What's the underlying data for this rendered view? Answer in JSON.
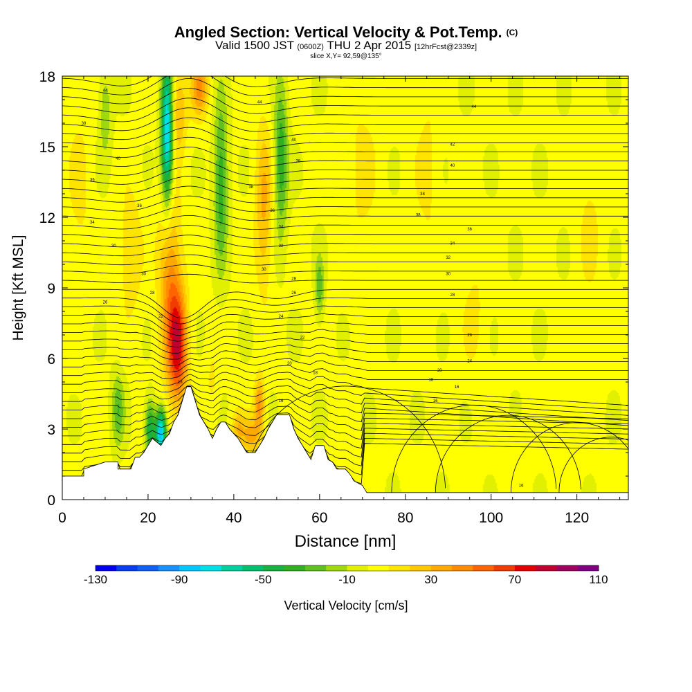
{
  "header": {
    "title": "Angled Section: Vertical Velocity & Pot.Temp.",
    "title_tag": "(C)",
    "valid_prefix": "Valid 1500 JST",
    "valid_utc": "(0600Z)",
    "valid_date": "THU 2 Apr 2015",
    "forecast": "[12hrFcst@2339z]",
    "slice": "slice X,Y= 92,59@135°"
  },
  "chart_data": {
    "type": "heatmap",
    "xlabel": "Distance [nm]",
    "ylabel": "Height [Kft MSL]",
    "xlim": [
      0,
      132
    ],
    "ylim": [
      0,
      18
    ],
    "xticks": [
      0,
      20,
      40,
      60,
      80,
      100,
      120
    ],
    "yticks": [
      0,
      3,
      6,
      9,
      12,
      15,
      18
    ],
    "fill_variable": "Vertical Velocity [cm/s]",
    "contour_variable": "Potential Temperature",
    "colorbar": {
      "label": "Vertical Velocity [cm/s]",
      "min": -130,
      "max": 110,
      "step": 10,
      "tick_labels": [
        "-130",
        "-90",
        "-50",
        "-10",
        "30",
        "70",
        "110"
      ],
      "colors": [
        "#0000ee",
        "#0a3cf0",
        "#1060f5",
        "#1890ff",
        "#00c8ff",
        "#00e0e8",
        "#00d0a0",
        "#00c070",
        "#18b040",
        "#30b020",
        "#60c020",
        "#a0d810",
        "#e0f000",
        "#ffff00",
        "#ffe400",
        "#ffc800",
        "#ffa800",
        "#ff8c00",
        "#ff6400",
        "#f03c00",
        "#e00000",
        "#c00030",
        "#a00060",
        "#800080"
      ]
    },
    "terrain_profile": [
      [
        0,
        1.0
      ],
      [
        5,
        1.0
      ],
      [
        5,
        1.3
      ],
      [
        10,
        1.6
      ],
      [
        13,
        1.6
      ],
      [
        13,
        1.3
      ],
      [
        16,
        1.3
      ],
      [
        17,
        1.8
      ],
      [
        18,
        1.8
      ],
      [
        19,
        2.0
      ],
      [
        20,
        2.3
      ],
      [
        21,
        2.6
      ],
      [
        23,
        2.3
      ],
      [
        24,
        2.6
      ],
      [
        25,
        2.8
      ],
      [
        26,
        3.3
      ],
      [
        27,
        3.6
      ],
      [
        28,
        4.2
      ],
      [
        29,
        4.8
      ],
      [
        30,
        4.8
      ],
      [
        31,
        4.2
      ],
      [
        32,
        3.6
      ],
      [
        33,
        3.3
      ],
      [
        34,
        3.0
      ],
      [
        35,
        2.6
      ],
      [
        36,
        3.0
      ],
      [
        37,
        3.3
      ],
      [
        38,
        3.3
      ],
      [
        39,
        3.0
      ],
      [
        40,
        2.8
      ],
      [
        41,
        2.6
      ],
      [
        42,
        2.3
      ],
      [
        43,
        2.0
      ],
      [
        45,
        2.0
      ],
      [
        46,
        2.3
      ],
      [
        47,
        2.6
      ],
      [
        48,
        3.0
      ],
      [
        49,
        3.3
      ],
      [
        50,
        3.6
      ],
      [
        53,
        3.6
      ],
      [
        54,
        3.0
      ],
      [
        55,
        2.6
      ],
      [
        56,
        2.3
      ],
      [
        57,
        2.0
      ],
      [
        58,
        1.7
      ],
      [
        59,
        2.3
      ],
      [
        61,
        2.3
      ],
      [
        62,
        1.7
      ],
      [
        63,
        1.6
      ],
      [
        64,
        1.3
      ],
      [
        66,
        1.3
      ],
      [
        67,
        1.1
      ],
      [
        68,
        0.8
      ],
      [
        70,
        0.6
      ],
      [
        71,
        0.3
      ],
      [
        132,
        0.3
      ]
    ],
    "vertical_velocity_features": [
      {
        "x": 27,
        "y": 6.5,
        "value": 70,
        "sx": 2.2,
        "sy": 2.4
      },
      {
        "x": 25,
        "y": 9.5,
        "value": 40,
        "sx": 2.5,
        "sy": 4.0
      },
      {
        "x": 27,
        "y": 16.5,
        "value": 30,
        "sx": 2.0,
        "sy": 1.8
      },
      {
        "x": 32,
        "y": 17.5,
        "value": 40,
        "sx": 2.0,
        "sy": 1.2
      },
      {
        "x": 24.5,
        "y": 15.5,
        "value": -90,
        "sx": 1.4,
        "sy": 3.2
      },
      {
        "x": 23,
        "y": 2.8,
        "value": -90,
        "sx": 1.2,
        "sy": 1.0
      },
      {
        "x": 20.5,
        "y": 3.0,
        "value": -50,
        "sx": 1.2,
        "sy": 1.2
      },
      {
        "x": 37,
        "y": 13.5,
        "value": -40,
        "sx": 1.6,
        "sy": 3.5
      },
      {
        "x": 51,
        "y": 14.5,
        "value": -40,
        "sx": 1.6,
        "sy": 3.2
      },
      {
        "x": 47,
        "y": 12.5,
        "value": 30,
        "sx": 2.0,
        "sy": 3.5
      },
      {
        "x": 46,
        "y": 4.0,
        "value": 40,
        "sx": 1.2,
        "sy": 1.2
      },
      {
        "x": 44,
        "y": 2.7,
        "value": 30,
        "sx": 2.0,
        "sy": 0.8
      },
      {
        "x": 41,
        "y": 3.0,
        "value": 25,
        "sx": 1.5,
        "sy": 0.8
      },
      {
        "x": 13,
        "y": 3.8,
        "value": -30,
        "sx": 1.5,
        "sy": 1.5
      },
      {
        "x": 10,
        "y": 16.5,
        "value": -20,
        "sx": 1.5,
        "sy": 2.0
      },
      {
        "x": 16,
        "y": 10.5,
        "value": 20,
        "sx": 2.5,
        "sy": 2.5
      },
      {
        "x": 60,
        "y": 9.0,
        "value": -30,
        "sx": 1.0,
        "sy": 1.3
      },
      {
        "x": 70,
        "y": 14.0,
        "value": 10,
        "sx": 4.0,
        "sy": 5.0
      },
      {
        "x": 85,
        "y": 14.0,
        "value": 10,
        "sx": 3.0,
        "sy": 5.0
      },
      {
        "x": 4,
        "y": 13.0,
        "value": 10,
        "sx": 3.0,
        "sy": 5.0
      },
      {
        "x": 105,
        "y": 2.0,
        "value": 8,
        "sx": 3.0,
        "sy": 1.2
      },
      {
        "x": 118,
        "y": 4.0,
        "value": 8,
        "sx": 4.0,
        "sy": 2.0
      },
      {
        "x": 123,
        "y": 12.0,
        "value": 10,
        "sx": 3.0,
        "sy": 4.0
      },
      {
        "x": 96,
        "y": 8.0,
        "value": 10,
        "sx": 3.0,
        "sy": 3.0
      },
      {
        "x": 50,
        "y": 1.5,
        "value": 10,
        "sx": 2.0,
        "sy": 1.0
      },
      {
        "x": 35,
        "y": 5.0,
        "value": 10,
        "sx": 1.5,
        "sy": 1.5
      }
    ],
    "contour_labels": [
      {
        "x": 10,
        "y": 17.4,
        "text": "44"
      },
      {
        "x": 5,
        "y": 16.0,
        "text": "38"
      },
      {
        "x": 13,
        "y": 14.5,
        "text": "40"
      },
      {
        "x": 7,
        "y": 13.6,
        "text": "36"
      },
      {
        "x": 18,
        "y": 12.5,
        "text": "36"
      },
      {
        "x": 7,
        "y": 11.8,
        "text": "34"
      },
      {
        "x": 12,
        "y": 10.8,
        "text": "30"
      },
      {
        "x": 19,
        "y": 9.6,
        "text": "30"
      },
      {
        "x": 21,
        "y": 8.8,
        "text": "28"
      },
      {
        "x": 10,
        "y": 8.4,
        "text": "26"
      },
      {
        "x": 23,
        "y": 7.8,
        "text": "22"
      },
      {
        "x": 27.5,
        "y": 5.0,
        "text": "18"
      },
      {
        "x": 46,
        "y": 16.9,
        "text": "44"
      },
      {
        "x": 54,
        "y": 15.3,
        "text": "40"
      },
      {
        "x": 55,
        "y": 14.4,
        "text": "38"
      },
      {
        "x": 44,
        "y": 13.3,
        "text": "38"
      },
      {
        "x": 49,
        "y": 12.3,
        "text": "36"
      },
      {
        "x": 51,
        "y": 11.6,
        "text": "34"
      },
      {
        "x": 51,
        "y": 10.8,
        "text": "32"
      },
      {
        "x": 47,
        "y": 9.8,
        "text": "30"
      },
      {
        "x": 54,
        "y": 9.4,
        "text": "28"
      },
      {
        "x": 54,
        "y": 8.8,
        "text": "26"
      },
      {
        "x": 51,
        "y": 7.8,
        "text": "24"
      },
      {
        "x": 56,
        "y": 6.9,
        "text": "22"
      },
      {
        "x": 53,
        "y": 5.8,
        "text": "20"
      },
      {
        "x": 59,
        "y": 5.4,
        "text": "18"
      },
      {
        "x": 51,
        "y": 4.2,
        "text": "16"
      },
      {
        "x": 96,
        "y": 16.7,
        "text": "44"
      },
      {
        "x": 91,
        "y": 15.1,
        "text": "42"
      },
      {
        "x": 91,
        "y": 14.2,
        "text": "40"
      },
      {
        "x": 84,
        "y": 13.0,
        "text": "38"
      },
      {
        "x": 83,
        "y": 12.1,
        "text": "38"
      },
      {
        "x": 95,
        "y": 11.5,
        "text": "36"
      },
      {
        "x": 91,
        "y": 10.9,
        "text": "34"
      },
      {
        "x": 90,
        "y": 10.3,
        "text": "32"
      },
      {
        "x": 90,
        "y": 9.6,
        "text": "30"
      },
      {
        "x": 91,
        "y": 8.7,
        "text": "28"
      },
      {
        "x": 95,
        "y": 7.0,
        "text": "26"
      },
      {
        "x": 95,
        "y": 5.9,
        "text": "24"
      },
      {
        "x": 88,
        "y": 5.5,
        "text": "20"
      },
      {
        "x": 86,
        "y": 5.1,
        "text": "18"
      },
      {
        "x": 92,
        "y": 4.8,
        "text": "16"
      },
      {
        "x": 87,
        "y": 4.2,
        "text": "16"
      },
      {
        "x": 107,
        "y": 0.6,
        "text": "16"
      }
    ]
  }
}
